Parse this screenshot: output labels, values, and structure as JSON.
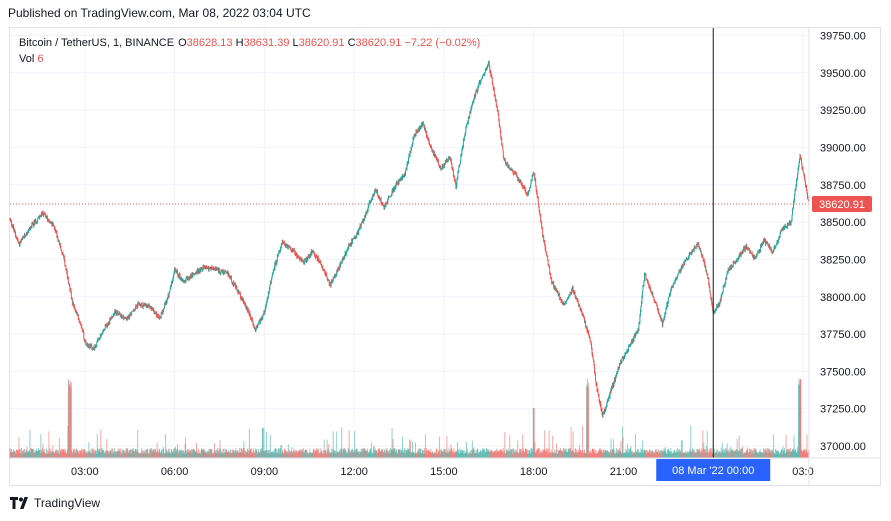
{
  "header": {
    "published": "Published on TradingView.com, Mar 08, 2022 03:04 UTC"
  },
  "legend": {
    "symbol": "Bitcoin / TetherUS, 1, BINANCE",
    "o_label": "O",
    "o_value": "38628.13",
    "h_label": "H",
    "h_value": "38631.39",
    "l_label": "L",
    "l_value": "38620.91",
    "c_label": "C",
    "c_value": "38620.91",
    "change": "−7.22 (−0.02%)",
    "vol_label": "Vol",
    "vol_value": "6"
  },
  "footer": {
    "brand": "TradingView"
  },
  "colors": {
    "up": "#26a69a",
    "down": "#ef5350",
    "crosshair": "#2962ff",
    "price_line": "#ef5350",
    "grid": "#f0f3fa"
  },
  "chart_data": {
    "type": "line",
    "title": "Bitcoin / TetherUS, 1, BINANCE",
    "y_ticks": [
      "37000.00",
      "37250.00",
      "37500.00",
      "37750.00",
      "38000.00",
      "38250.00",
      "38500.00",
      "38750.00",
      "39000.00",
      "39250.00",
      "39500.00",
      "39750.00"
    ],
    "x_ticks": [
      "03:00",
      "06:00",
      "09:00",
      "12:00",
      "15:00",
      "18:00",
      "21:00",
      "03:0"
    ],
    "ylim": [
      36920,
      39800
    ],
    "x_range_hours": [
      0.5,
      27.2
    ],
    "last_price": "38620.91",
    "crosshair_label": "08 Mar '22   00:00",
    "crosshair_time_h": 24.0,
    "path": [
      [
        0.5,
        38520
      ],
      [
        0.8,
        38350
      ],
      [
        1.2,
        38470
      ],
      [
        1.6,
        38560
      ],
      [
        2.0,
        38460
      ],
      [
        2.3,
        38250
      ],
      [
        2.6,
        37950
      ],
      [
        2.9,
        37800
      ],
      [
        3.0,
        37700
      ],
      [
        3.3,
        37650
      ],
      [
        3.7,
        37800
      ],
      [
        4.0,
        37900
      ],
      [
        4.4,
        37850
      ],
      [
        4.8,
        37950
      ],
      [
        5.2,
        37930
      ],
      [
        5.5,
        37850
      ],
      [
        5.8,
        38010
      ],
      [
        6.0,
        38180
      ],
      [
        6.3,
        38100
      ],
      [
        6.7,
        38160
      ],
      [
        7.0,
        38200
      ],
      [
        7.4,
        38180
      ],
      [
        7.8,
        38150
      ],
      [
        8.1,
        38040
      ],
      [
        8.4,
        37930
      ],
      [
        8.7,
        37780
      ],
      [
        9.0,
        37900
      ],
      [
        9.3,
        38180
      ],
      [
        9.6,
        38360
      ],
      [
        9.9,
        38320
      ],
      [
        10.3,
        38230
      ],
      [
        10.6,
        38300
      ],
      [
        10.9,
        38220
      ],
      [
        11.2,
        38080
      ],
      [
        11.5,
        38200
      ],
      [
        11.8,
        38330
      ],
      [
        12.1,
        38420
      ],
      [
        12.4,
        38560
      ],
      [
        12.7,
        38720
      ],
      [
        13.0,
        38600
      ],
      [
        13.4,
        38750
      ],
      [
        13.7,
        38820
      ],
      [
        14.0,
        39080
      ],
      [
        14.3,
        39160
      ],
      [
        14.6,
        38980
      ],
      [
        14.9,
        38860
      ],
      [
        15.2,
        38940
      ],
      [
        15.4,
        38740
      ],
      [
        15.7,
        39100
      ],
      [
        16.0,
        39330
      ],
      [
        16.2,
        39440
      ],
      [
        16.5,
        39560
      ],
      [
        16.8,
        39240
      ],
      [
        17.0,
        38920
      ],
      [
        17.2,
        38860
      ],
      [
        17.5,
        38790
      ],
      [
        17.8,
        38680
      ],
      [
        18.0,
        38840
      ],
      [
        18.3,
        38420
      ],
      [
        18.6,
        38100
      ],
      [
        19.0,
        37950
      ],
      [
        19.3,
        38050
      ],
      [
        19.6,
        37900
      ],
      [
        19.9,
        37700
      ],
      [
        20.1,
        37400
      ],
      [
        20.3,
        37200
      ],
      [
        20.6,
        37380
      ],
      [
        20.9,
        37560
      ],
      [
        21.2,
        37670
      ],
      [
        21.5,
        37780
      ],
      [
        21.7,
        38150
      ],
      [
        22.0,
        38000
      ],
      [
        22.3,
        37820
      ],
      [
        22.6,
        38060
      ],
      [
        22.9,
        38180
      ],
      [
        23.2,
        38280
      ],
      [
        23.5,
        38360
      ],
      [
        23.8,
        38150
      ],
      [
        24.0,
        37900
      ],
      [
        24.2,
        37950
      ],
      [
        24.5,
        38180
      ],
      [
        24.8,
        38250
      ],
      [
        25.1,
        38340
      ],
      [
        25.4,
        38250
      ],
      [
        25.7,
        38380
      ],
      [
        26.0,
        38300
      ],
      [
        26.3,
        38450
      ],
      [
        26.6,
        38500
      ],
      [
        26.9,
        38950
      ],
      [
        27.2,
        38620
      ]
    ]
  }
}
